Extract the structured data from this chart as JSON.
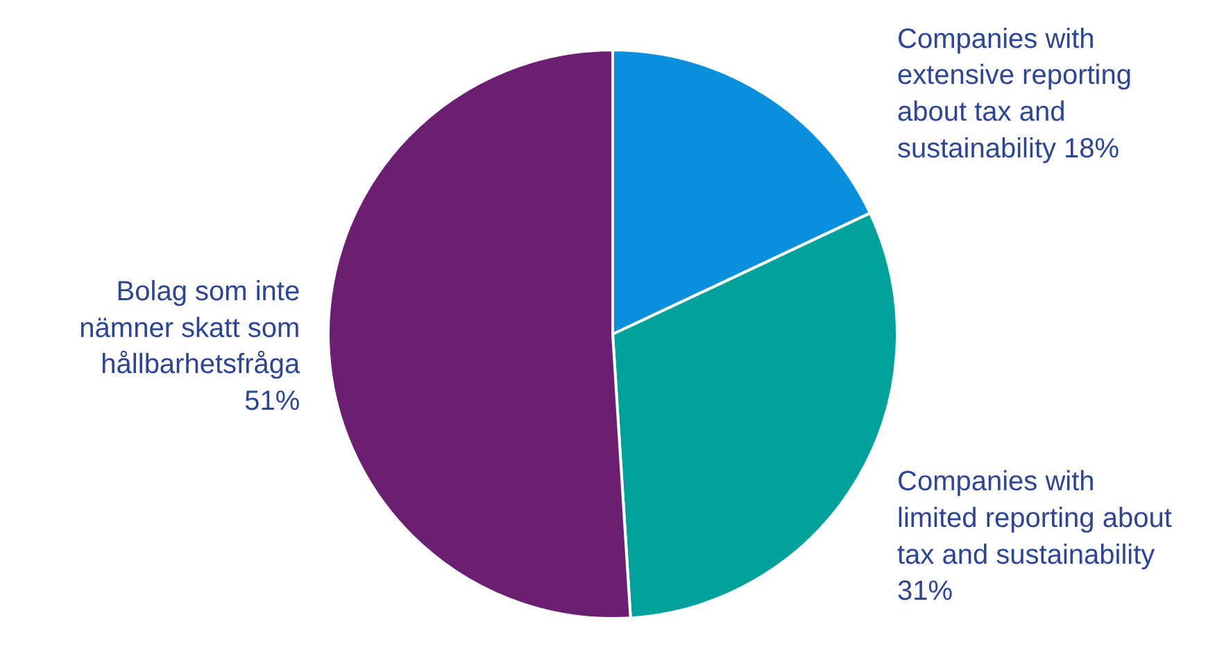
{
  "chart_data": {
    "type": "pie",
    "categories": [
      "Companies with\nextensive reporting\nabout tax and\nsustainability",
      "Companies with\nlimited reporting about\ntax and sustainability",
      "Bolag som inte\nnämner skatt som\nhållbarhetsfråga"
    ],
    "values": [
      18,
      31,
      51
    ],
    "colors": [
      "#0a8fdc",
      "#00a19b",
      "#6b1f73"
    ],
    "value_labels": [
      "18%",
      "31%",
      "51%"
    ]
  }
}
